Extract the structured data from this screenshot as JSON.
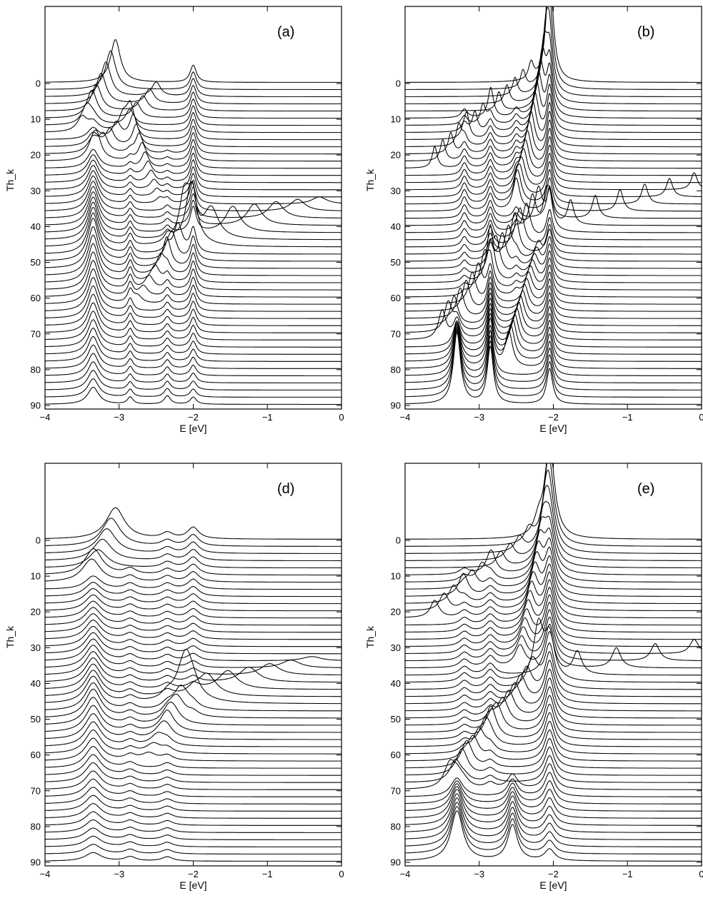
{
  "figure": {
    "panels": [
      "a",
      "b",
      "d",
      "e"
    ]
  },
  "chart_data": [
    {
      "id": "a",
      "type": "line",
      "panel_label": "(a)",
      "xlabel": "E [eV]",
      "ylabel": "Th_k",
      "xlim": [
        -4,
        0
      ],
      "ylim": [
        0,
        90
      ],
      "x_ticks": [
        "−4",
        "−3",
        "−2",
        "−1",
        "0"
      ],
      "y_ticks": [
        "0",
        "10",
        "20",
        "30",
        "40",
        "50",
        "60",
        "70",
        "80",
        "90"
      ],
      "theta_step": 2,
      "series_count": 46,
      "fixed_peaks": [
        {
          "E": -3.35,
          "y_from": 10,
          "y_to": 90,
          "height": [
            0.4,
            3.0,
            1.2
          ],
          "width": 0.09
        },
        {
          "E": -2.85,
          "y_from": 20,
          "y_to": 90,
          "height": [
            0.25,
            1.0,
            0.5
          ],
          "width": 0.045
        },
        {
          "E": -2.35,
          "y_from": 20,
          "y_to": 90,
          "height": [
            0.2,
            0.6,
            0.6
          ],
          "width": 0.05
        },
        {
          "E": -2.0,
          "y_from": 0,
          "y_to": 90,
          "height": [
            1.2,
            1.8,
            0.5
          ],
          "width": 0.05
        }
      ],
      "dispersing_peaks": [
        {
          "E_start": -3.05,
          "y_start": 0,
          "E_end": -3.5,
          "y_end": 14,
          "height": [
            3.0,
            1.0
          ],
          "width": 0.08
        },
        {
          "E_start": -2.5,
          "y_start": 4,
          "E_end": -3.3,
          "y_end": 22,
          "height": [
            1.0,
            1.2
          ],
          "width": 0.07
        },
        {
          "E_start": -2.85,
          "y_start": 14,
          "E_end": -2.45,
          "y_end": 34,
          "height": [
            1.8,
            0.4
          ],
          "width": 0.06
        },
        {
          "E_start": -0.3,
          "y_start": 34,
          "E_end": -2.05,
          "y_end": 46,
          "height": [
            0.5,
            2.5
          ],
          "width": 0.12
        },
        {
          "E_start": -2.05,
          "y_start": 44,
          "E_end": -2.75,
          "y_end": 62,
          "height": [
            2.5,
            0.5
          ],
          "width": 0.07
        }
      ]
    },
    {
      "id": "b",
      "type": "line",
      "panel_label": "(b)",
      "xlabel": "E [eV]",
      "ylabel": "Th_k",
      "xlim": [
        -4,
        0
      ],
      "ylim": [
        0,
        90
      ],
      "x_ticks": [
        "−4",
        "−3",
        "−2",
        "−1",
        "0"
      ],
      "y_ticks": [
        "0",
        "10",
        "20",
        "30",
        "40",
        "50",
        "60",
        "70",
        "80",
        "90"
      ],
      "theta_step": 2,
      "series_count": 46,
      "fixed_peaks": [
        {
          "E": -3.2,
          "y_from": 10,
          "y_to": 60,
          "height": [
            0.6,
            1.0,
            0.3
          ],
          "width": 0.05
        },
        {
          "E": -2.85,
          "y_from": 10,
          "y_to": 90,
          "height": [
            0.8,
            1.4,
            4.0
          ],
          "width": 0.05
        },
        {
          "E": -2.5,
          "y_from": 10,
          "y_to": 60,
          "height": [
            0.6,
            0.8,
            0.4
          ],
          "width": 0.05
        },
        {
          "E": -2.05,
          "y_from": 0,
          "y_to": 90,
          "height": [
            3.5,
            2.0,
            2.5
          ],
          "width": 0.05
        },
        {
          "E": -3.3,
          "y_from": 70,
          "y_to": 90,
          "height": [
            1.0,
            3.0,
            5.0
          ],
          "width": 0.06
        }
      ],
      "dispersing_peaks": [
        {
          "E_start": -2.3,
          "y_start": 0,
          "E_end": -3.6,
          "y_end": 24,
          "height": [
            1.2,
            1.5
          ],
          "width": 0.04
        },
        {
          "E_start": -2.05,
          "y_start": 0,
          "E_end": -2.5,
          "y_end": 36,
          "height": [
            4.5,
            1.5
          ],
          "width": 0.06
        },
        {
          "E_start": -0.1,
          "y_start": 30,
          "E_end": -2.1,
          "y_end": 42,
          "height": [
            1.2,
            1.8
          ],
          "width": 0.05
        },
        {
          "E_start": -2.2,
          "y_start": 40,
          "E_end": -3.5,
          "y_end": 72,
          "height": [
            2.5,
            2.0
          ],
          "width": 0.06
        },
        {
          "E_start": -2.2,
          "y_start": 50,
          "E_end": -2.6,
          "y_end": 80,
          "height": [
            1.2,
            2.5
          ],
          "width": 0.06
        }
      ]
    },
    {
      "id": "d",
      "type": "line",
      "panel_label": "(d)",
      "xlabel": "E [eV]",
      "ylabel": "Th_k",
      "xlim": [
        -4,
        0
      ],
      "ylim": [
        0,
        90
      ],
      "x_ticks": [
        "−4",
        "−3",
        "−2",
        "−1",
        "0"
      ],
      "y_ticks": [
        "0",
        "10",
        "20",
        "30",
        "40",
        "50",
        "60",
        "70",
        "80",
        "90"
      ],
      "theta_step": 2,
      "series_count": 46,
      "fixed_peaks": [
        {
          "E": -3.35,
          "y_from": 10,
          "y_to": 90,
          "height": [
            0.8,
            2.0,
            0.6
          ],
          "width": 0.13
        },
        {
          "E": -2.85,
          "y_from": 10,
          "y_to": 90,
          "height": [
            0.4,
            0.4,
            0.3
          ],
          "width": 0.09
        },
        {
          "E": -2.35,
          "y_from": 0,
          "y_to": 90,
          "height": [
            0.4,
            0.4,
            0.3
          ],
          "width": 0.09
        },
        {
          "E": -2.0,
          "y_from": 0,
          "y_to": 50,
          "height": [
            0.8,
            0.6,
            0.3
          ],
          "width": 0.09
        }
      ],
      "dispersing_peaks": [
        {
          "E_start": -3.05,
          "y_start": 0,
          "E_end": -3.4,
          "y_end": 12,
          "height": [
            2.2,
            0.8
          ],
          "width": 0.15
        },
        {
          "E_start": -0.4,
          "y_start": 34,
          "E_end": -2.1,
          "y_end": 46,
          "height": [
            0.3,
            1.8
          ],
          "width": 0.15
        },
        {
          "E_start": -2.1,
          "y_start": 46,
          "E_end": -2.6,
          "y_end": 62,
          "height": [
            1.8,
            0.5
          ],
          "width": 0.12
        }
      ]
    },
    {
      "id": "e",
      "type": "line",
      "panel_label": "(e)",
      "xlabel": "E [eV]",
      "ylabel": "Th_k",
      "xlim": [
        -4,
        0
      ],
      "ylim": [
        0,
        90
      ],
      "x_ticks": [
        "−4",
        "−3",
        "−2",
        "−1",
        "0"
      ],
      "y_ticks": [
        "0",
        "10",
        "20",
        "30",
        "40",
        "50",
        "60",
        "70",
        "80",
        "90"
      ],
      "theta_step": 2,
      "series_count": 46,
      "fixed_peaks": [
        {
          "E": -3.2,
          "y_from": 10,
          "y_to": 70,
          "height": [
            0.4,
            0.6,
            0.3
          ],
          "width": 0.08
        },
        {
          "E": -2.85,
          "y_from": 10,
          "y_to": 70,
          "height": [
            0.6,
            0.8,
            0.4
          ],
          "width": 0.08
        },
        {
          "E": -2.05,
          "y_from": 0,
          "y_to": 90,
          "height": [
            3.0,
            3.0,
            0.8
          ],
          "width": 0.08
        },
        {
          "E": -3.3,
          "y_from": 70,
          "y_to": 90,
          "height": [
            1.0,
            2.5,
            3.5
          ],
          "width": 0.1
        },
        {
          "E": -2.55,
          "y_from": 70,
          "y_to": 90,
          "height": [
            1.0,
            2.0,
            2.5
          ],
          "width": 0.08
        }
      ],
      "dispersing_peaks": [
        {
          "E_start": -2.2,
          "y_start": 0,
          "E_end": -3.6,
          "y_end": 22,
          "height": [
            1.0,
            1.2
          ],
          "width": 0.07
        },
        {
          "E_start": -2.05,
          "y_start": 0,
          "E_end": -2.45,
          "y_end": 36,
          "height": [
            3.5,
            1.5
          ],
          "width": 0.08
        },
        {
          "E_start": -0.1,
          "y_start": 32,
          "E_end": -2.2,
          "y_end": 40,
          "height": [
            1.0,
            1.8
          ],
          "width": 0.07
        },
        {
          "E_start": -2.2,
          "y_start": 40,
          "E_end": -3.4,
          "y_end": 70,
          "height": [
            2.0,
            1.5
          ],
          "width": 0.09
        }
      ]
    }
  ]
}
